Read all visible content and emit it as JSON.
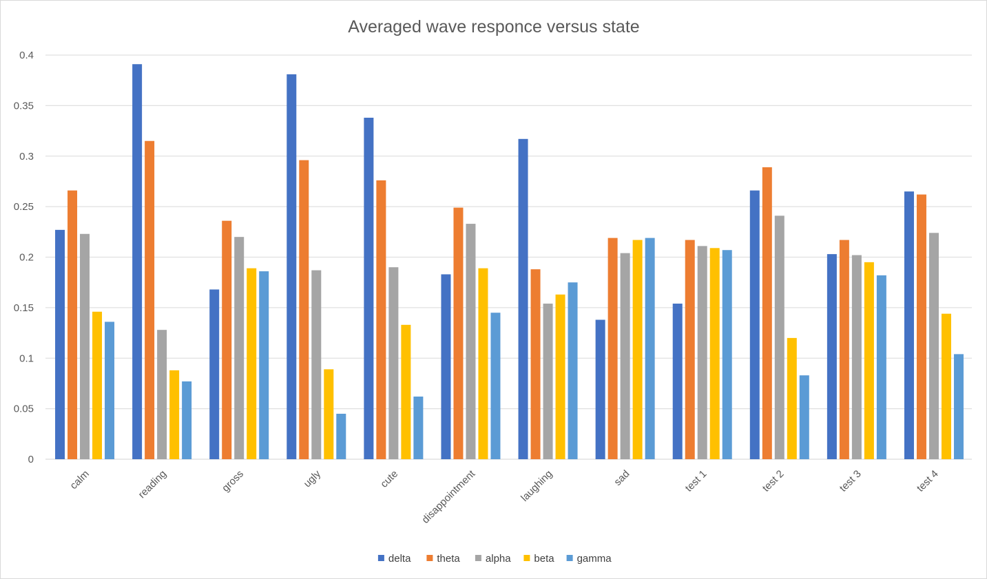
{
  "chart_data": {
    "type": "bar",
    "title": "Averaged wave responce versus state",
    "xlabel": "",
    "ylabel": "",
    "ylim": [
      0,
      0.4
    ],
    "y_ticks": [
      "0",
      "0.05",
      "0.1",
      "0.15",
      "0.2",
      "0.25",
      "0.3",
      "0.35",
      "0.4"
    ],
    "y_tick_values": [
      0,
      0.05,
      0.1,
      0.15,
      0.2,
      0.25,
      0.3,
      0.35,
      0.4
    ],
    "grid": true,
    "legend_position": "bottom",
    "categories": [
      "calm",
      "reading",
      "gross",
      "ugly",
      "cute",
      "disappointment",
      "laughing",
      "sad",
      "test 1",
      "test 2",
      "test 3",
      "test 4"
    ],
    "series": [
      {
        "name": "delta",
        "color": "#4472c4",
        "values": [
          0.227,
          0.391,
          0.168,
          0.381,
          0.338,
          0.183,
          0.317,
          0.138,
          0.154,
          0.266,
          0.203,
          0.265
        ]
      },
      {
        "name": "theta",
        "color": "#ed7d31",
        "values": [
          0.266,
          0.315,
          0.236,
          0.296,
          0.276,
          0.249,
          0.188,
          0.219,
          0.217,
          0.289,
          0.217,
          0.262
        ]
      },
      {
        "name": "alpha",
        "color": "#a5a5a5",
        "values": [
          0.223,
          0.128,
          0.22,
          0.187,
          0.19,
          0.233,
          0.154,
          0.204,
          0.211,
          0.241,
          0.202,
          0.224
        ]
      },
      {
        "name": "beta",
        "color": "#ffc000",
        "values": [
          0.146,
          0.088,
          0.189,
          0.089,
          0.133,
          0.189,
          0.163,
          0.217,
          0.209,
          0.12,
          0.195,
          0.144
        ]
      },
      {
        "name": "gamma",
        "color": "#5b9bd5",
        "values": [
          0.136,
          0.077,
          0.186,
          0.045,
          0.062,
          0.145,
          0.175,
          0.219,
          0.207,
          0.083,
          0.182,
          0.104
        ]
      }
    ]
  }
}
